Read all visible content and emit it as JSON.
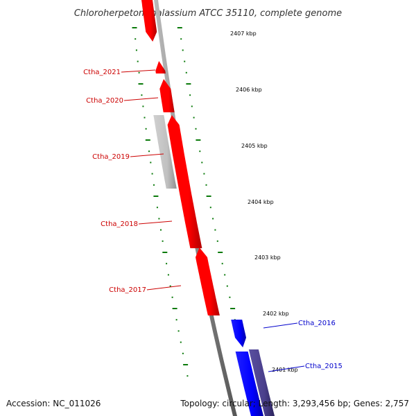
{
  "title": "Chloroherpeton thalassium ATCC 35110, complete genome",
  "footer": {
    "accession": "Accession: NC_011026",
    "summary": "Topology: circular; Length: 3,293,456 bp; Genes: 2,757"
  },
  "colors": {
    "forward_gene": "#ff0000",
    "reverse_gene": "#0000ff",
    "other_gene": "#c0c0c0",
    "reverse_other_gene": "#4a3f8c",
    "backbone": "#888888",
    "tick": "#0a7a0a",
    "forward_label": "#cc0000",
    "reverse_label": "#0000cc"
  },
  "ticks": {
    "labels": [
      "2407 kbp",
      "2406 kbp",
      "2405 kbp",
      "2404 kbp",
      "2403 kbp",
      "2402 kbp",
      "2401 kbp"
    ]
  },
  "genes": {
    "forward": [
      {
        "label": "Ctha_2021",
        "strand": "+"
      },
      {
        "label": "Ctha_2020",
        "strand": "+"
      },
      {
        "label": "Ctha_2019",
        "strand": "+"
      },
      {
        "label": "Ctha_2018",
        "strand": "+"
      },
      {
        "label": "Ctha_2017",
        "strand": "+"
      }
    ],
    "reverse": [
      {
        "label": "Ctha_2016",
        "strand": "-"
      },
      {
        "label": "Ctha_2015",
        "strand": "-"
      }
    ]
  }
}
